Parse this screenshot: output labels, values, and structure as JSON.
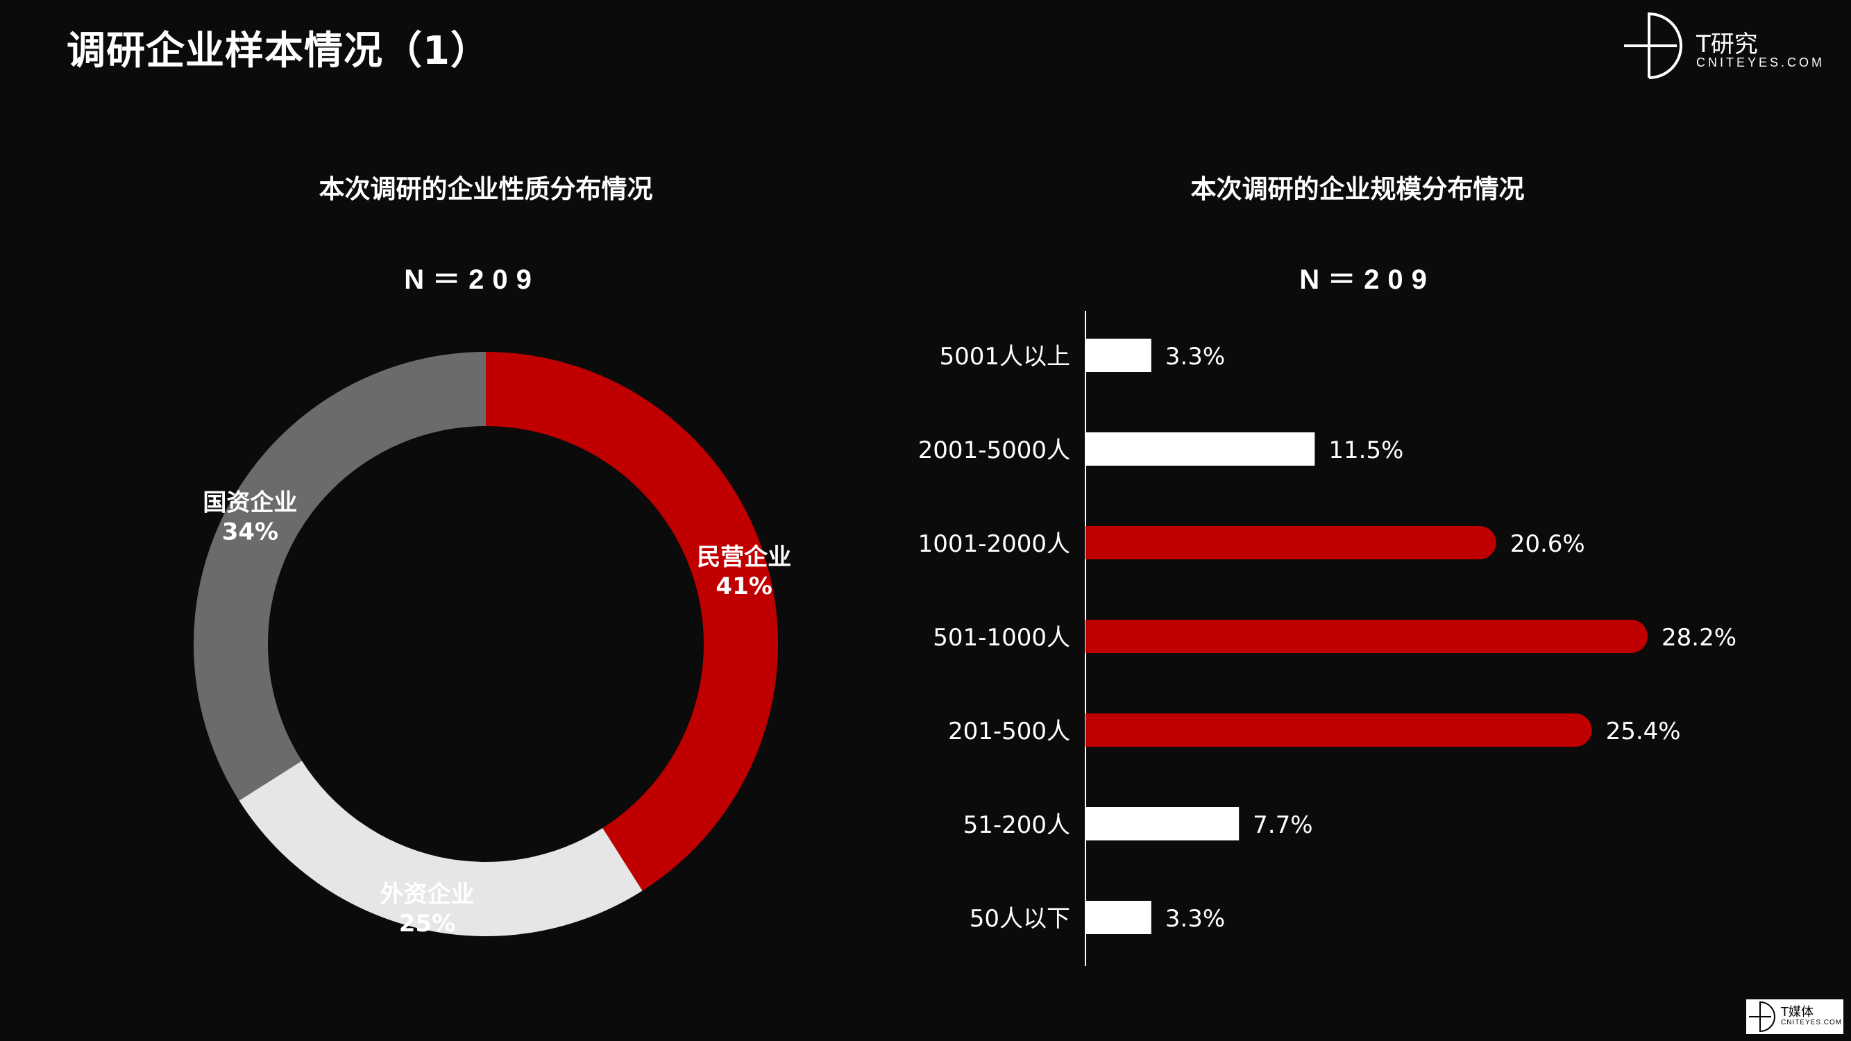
{
  "page": {
    "title": "调研企业样本情况（1）",
    "background": "#0b0b0b"
  },
  "brand": {
    "name_cn": "T研究",
    "domain": "CNITEYES.COM",
    "icon": "brand-logo-icon"
  },
  "footer": {
    "name_cn": "T媒体",
    "domain": "CNITEYES.COM"
  },
  "colors": {
    "red": "#c00000",
    "dark_gray": "#6b6b6b",
    "light_gray": "#e6e6e6",
    "white": "#ffffff"
  },
  "chart_data": [
    {
      "type": "pie",
      "variant": "donut",
      "title": "本次调研的企业性质分布情况",
      "subtitle": "N＝209",
      "slices": [
        {
          "label": "民营企业",
          "value": 41,
          "display": "41%",
          "color": "#c00000"
        },
        {
          "label": "外资企业",
          "value": 25,
          "display": "25%",
          "color": "#e6e6e6"
        },
        {
          "label": "国资企业",
          "value": 34,
          "display": "34%",
          "color": "#6b6b6b"
        }
      ]
    },
    {
      "type": "bar",
      "orientation": "horizontal",
      "title": "本次调研的企业规模分布情况",
      "subtitle": "N＝209",
      "categories": [
        "5001人以上",
        "2001-5000人",
        "1001-2000人",
        "501-1000人",
        "201-500人",
        "51-200人",
        "50人以下"
      ],
      "values": [
        3.3,
        11.5,
        20.6,
        28.2,
        25.4,
        7.7,
        3.3
      ],
      "labels": [
        "3.3%",
        "11.5%",
        "20.6%",
        "28.2%",
        "25.4%",
        "7.7%",
        "3.3%"
      ],
      "highlight": [
        false,
        false,
        true,
        true,
        true,
        false,
        false
      ],
      "xlim": [
        0,
        30
      ],
      "grid": false
    }
  ]
}
